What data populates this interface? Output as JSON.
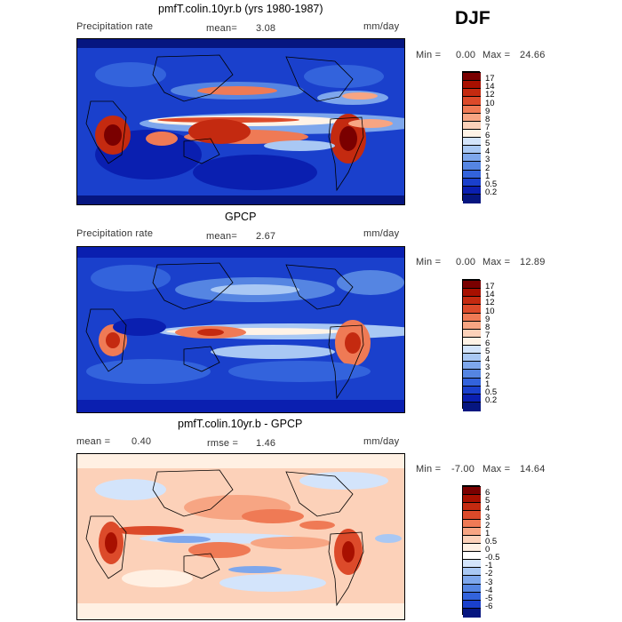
{
  "season": "DJF",
  "panels": [
    {
      "title": "pmfT.colin.10yr.b (yrs 1980-1987)",
      "variable": "Precipitation rate",
      "mean_label": "mean=",
      "mean_value": "3.08",
      "units": "mm/day",
      "min_label": "Min =",
      "min_value": "0.00",
      "max_label": "Max =",
      "max_value": "24.66",
      "colorbar": [
        "17",
        "14",
        "12",
        "10",
        "9",
        "8",
        "7",
        "6",
        "5",
        "4",
        "3",
        "2",
        "1",
        "0.5",
        "0.2"
      ],
      "colors": [
        "#7a0000",
        "#a81000",
        "#c42a10",
        "#dc4a2a",
        "#ef7a55",
        "#f7a583",
        "#fcd1b9",
        "#fff3e6",
        "#d3e4fb",
        "#a9c8f4",
        "#7ea7ec",
        "#5585e2",
        "#3363dc",
        "#1a40cc",
        "#0a1fb0",
        "#061680"
      ]
    },
    {
      "title": "GPCP",
      "variable": "Precipitation rate",
      "mean_label": "mean=",
      "mean_value": "2.67",
      "units": "mm/day",
      "min_label": "Min =",
      "min_value": "0.00",
      "max_label": "Max =",
      "max_value": "12.89",
      "colorbar": [
        "17",
        "14",
        "12",
        "10",
        "9",
        "8",
        "7",
        "6",
        "5",
        "4",
        "3",
        "2",
        "1",
        "0.5",
        "0.2"
      ],
      "colors": [
        "#7a0000",
        "#a81000",
        "#c42a10",
        "#dc4a2a",
        "#ef7a55",
        "#f7a583",
        "#fcd1b9",
        "#fff3e6",
        "#d3e4fb",
        "#a9c8f4",
        "#7ea7ec",
        "#5585e2",
        "#3363dc",
        "#1a40cc",
        "#0a1fb0",
        "#061680"
      ]
    },
    {
      "title": "pmfT.colin.10yr.b - GPCP",
      "mean_label": "mean =",
      "mean_value": "0.40",
      "rmse_label": "rmse =",
      "rmse_value": "1.46",
      "units": "mm/day",
      "min_label": "Min =",
      "min_value": "-7.00",
      "max_label": "Max =",
      "max_value": "14.64",
      "colorbar": [
        "6",
        "5",
        "4",
        "3",
        "2",
        "1",
        "0.5",
        "0",
        "-0.5",
        "-1",
        "-2",
        "-3",
        "-4",
        "-5",
        "-6"
      ],
      "colors": [
        "#7a0000",
        "#a81000",
        "#c42a10",
        "#dc4a2a",
        "#ef7a55",
        "#f7a583",
        "#fcd1b9",
        "#fff0e3",
        "#ffffff",
        "#d3e4fb",
        "#a9c8f4",
        "#7ea7ec",
        "#5585e2",
        "#3363dc",
        "#1a40cc",
        "#061680"
      ]
    }
  ],
  "chart_data": [
    {
      "type": "heatmap",
      "title": "pmfT.colin.10yr.b (yrs 1980-1987)",
      "variable": "Precipitation rate",
      "units": "mm/day",
      "mean": 3.08,
      "min": 0.0,
      "max": 24.66,
      "levels": [
        0.2,
        0.5,
        1,
        2,
        3,
        4,
        5,
        6,
        7,
        8,
        9,
        10,
        12,
        14,
        17
      ]
    },
    {
      "type": "heatmap",
      "title": "GPCP",
      "variable": "Precipitation rate",
      "units": "mm/day",
      "mean": 2.67,
      "min": 0.0,
      "max": 12.89,
      "levels": [
        0.2,
        0.5,
        1,
        2,
        3,
        4,
        5,
        6,
        7,
        8,
        9,
        10,
        12,
        14,
        17
      ]
    },
    {
      "type": "heatmap",
      "title": "pmfT.colin.10yr.b - GPCP",
      "units": "mm/day",
      "mean": 0.4,
      "rmse": 1.46,
      "min": -7.0,
      "max": 14.64,
      "levels": [
        -6,
        -5,
        -4,
        -3,
        -2,
        -1,
        -0.5,
        0,
        0.5,
        1,
        2,
        3,
        4,
        5,
        6
      ]
    }
  ]
}
